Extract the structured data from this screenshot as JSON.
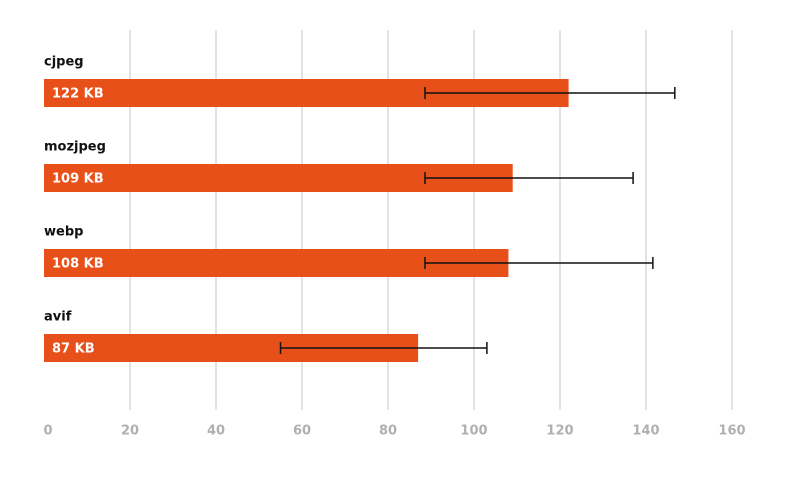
{
  "chart_data": {
    "type": "hbar-error",
    "categories": [
      "cjpeg",
      "mozjpeg",
      "webp",
      "avif"
    ],
    "values": [
      122,
      109,
      108,
      87
    ],
    "value_labels": [
      "122 KB",
      "109 KB",
      "108 KB",
      "87 KB"
    ],
    "error_low": [
      88.6,
      88.6,
      88.6,
      55
    ],
    "error_high": [
      146.7,
      137,
      141.6,
      103
    ],
    "color": "#e8501a",
    "xlim": [
      0,
      160
    ],
    "xticks": [
      0,
      20,
      40,
      60,
      80,
      100,
      120,
      140,
      160
    ],
    "grid": true
  }
}
